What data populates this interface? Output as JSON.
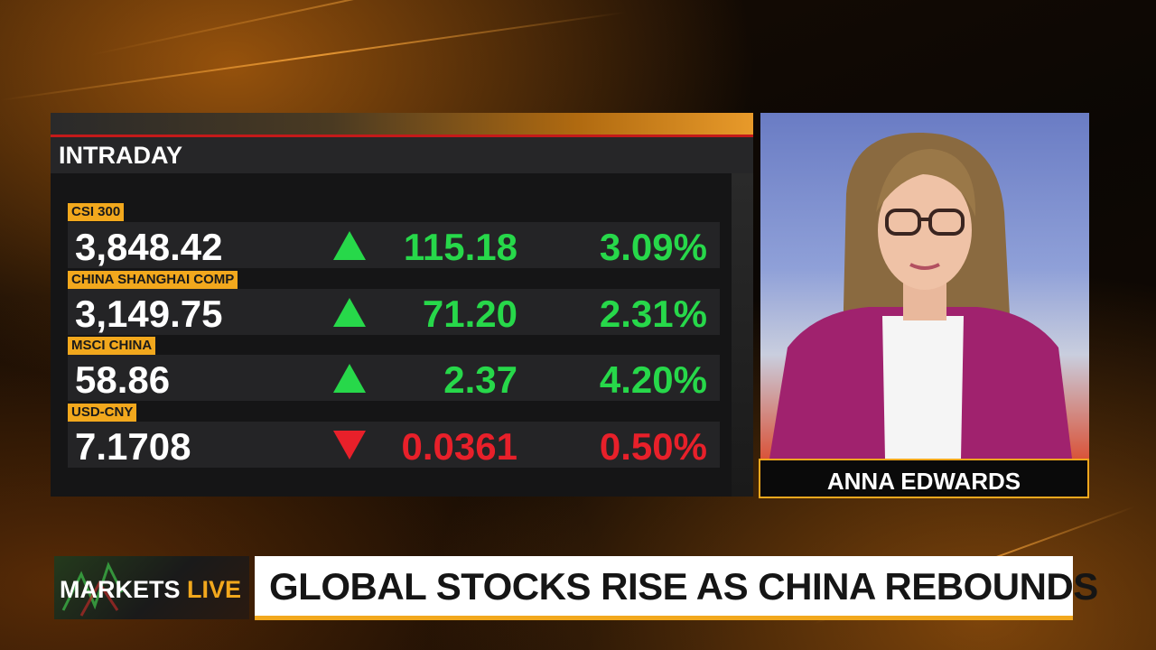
{
  "panel": {
    "title": "INTRADAY",
    "rows": [
      {
        "label": "CSI 300",
        "price": "3,848.42",
        "direction": "up",
        "change": "115.18",
        "pct": "3.09%"
      },
      {
        "label": "CHINA SHANGHAI COMP",
        "price": "3,149.75",
        "direction": "up",
        "change": "71.20",
        "pct": "2.31%"
      },
      {
        "label": "MSCI CHINA",
        "price": "58.86",
        "direction": "up",
        "change": "2.37",
        "pct": "4.20%"
      },
      {
        "label": "USD-CNY",
        "price": "7.1708",
        "direction": "down",
        "change": "0.0361",
        "pct": "0.50%"
      }
    ]
  },
  "presenter": {
    "name": "ANNA EDWARDS"
  },
  "banner": {
    "show_part1": "MARKETS",
    "show_part2": "LIVE",
    "headline": "GLOBAL STOCKS RISE AS CHINA REBOUNDS"
  },
  "colors": {
    "up": "#27d84a",
    "down": "#e8202a",
    "accent": "#f2a81d"
  }
}
